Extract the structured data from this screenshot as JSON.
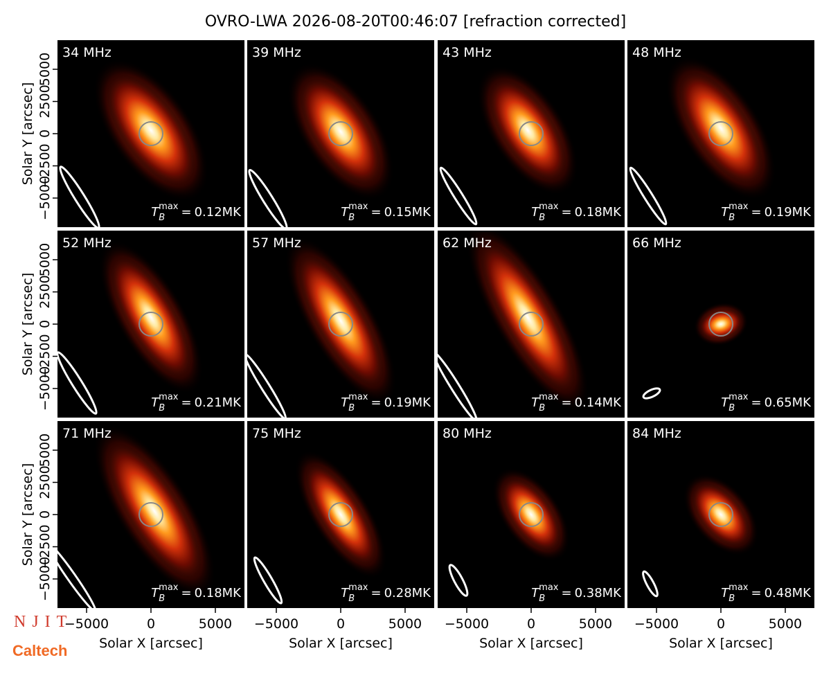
{
  "chart_data": {
    "type": "image_grid",
    "title": "OVRO-LWA 2026-08-20T00:46:07 [refraction corrected]",
    "xlabel": "Solar X [arcsec]",
    "ylabel": "Solar Y [arcsec]",
    "xlim": [
      -7260,
      7260
    ],
    "ylim": [
      -7260,
      7260
    ],
    "xticks": [
      {
        "value": -5000,
        "label": "−5000"
      },
      0,
      5000
    ],
    "yticks": [
      {
        "value": -5000,
        "label": "−5000"
      },
      {
        "value": -2500,
        "label": "−2500"
      },
      0,
      2500,
      5000
    ],
    "tb_symbol": "T",
    "tb_sub": "B",
    "tb_sup": "max",
    "tb_equals": "=",
    "panels": [
      {
        "label": "34 MHz",
        "tb_max": "0.12MK"
      },
      {
        "label": "39 MHz",
        "tb_max": "0.15MK"
      },
      {
        "label": "43 MHz",
        "tb_max": "0.18MK"
      },
      {
        "label": "48 MHz",
        "tb_max": "0.19MK"
      },
      {
        "label": "52 MHz",
        "tb_max": "0.21MK"
      },
      {
        "label": "57 MHz",
        "tb_max": "0.19MK"
      },
      {
        "label": "62 MHz",
        "tb_max": "0.14MK"
      },
      {
        "label": "66 MHz",
        "tb_max": "0.65MK"
      },
      {
        "label": "71 MHz",
        "tb_max": "0.18MK"
      },
      {
        "label": "75 MHz",
        "tb_max": "0.28MK"
      },
      {
        "label": "80 MHz",
        "tb_max": "0.38MK"
      },
      {
        "label": "84 MHz",
        "tb_max": "0.48MK"
      }
    ],
    "logos": [
      "NJIT",
      "Caltech"
    ]
  }
}
